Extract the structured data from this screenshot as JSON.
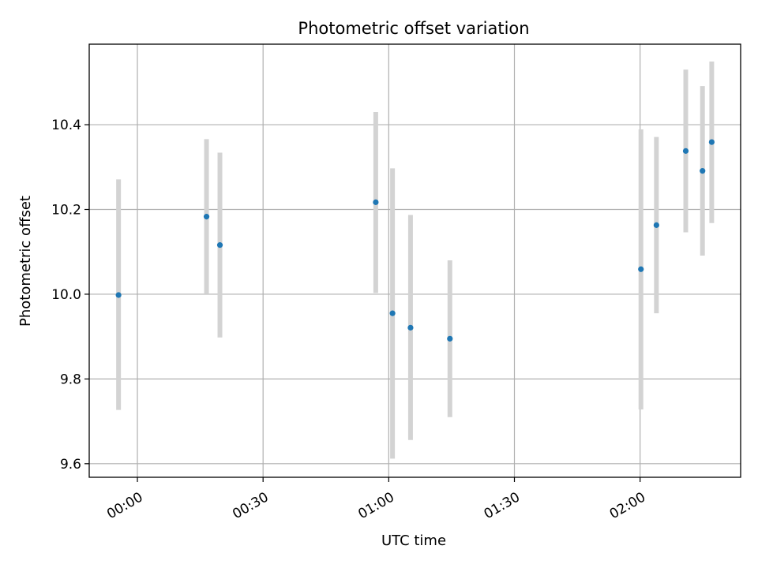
{
  "chart_data": {
    "type": "scatter",
    "title": "Photometric offset variation",
    "xlabel": "UTC time",
    "ylabel": "Photometric offset",
    "x_unit": "minutes",
    "xlim": [
      -11.5,
      144
    ],
    "ylim": [
      9.568,
      10.59
    ],
    "x_ticks": [
      {
        "value": 0,
        "label": "00:00"
      },
      {
        "value": 30,
        "label": "00:30"
      },
      {
        "value": 60,
        "label": "01:00"
      },
      {
        "value": 90,
        "label": "01:30"
      },
      {
        "value": 120,
        "label": "02:00"
      }
    ],
    "y_ticks": [
      {
        "value": 9.6,
        "label": "9.6"
      },
      {
        "value": 9.8,
        "label": "9.8"
      },
      {
        "value": 10.0,
        "label": "10.0"
      },
      {
        "value": 10.2,
        "label": "10.2"
      },
      {
        "value": 10.4,
        "label": "10.4"
      }
    ],
    "grid": true,
    "point_color": "#1f77b4",
    "errorbar_color": "#d3d3d3",
    "points": [
      {
        "time": "23:55",
        "x": -4.5,
        "y": 9.998,
        "ylow": 9.727,
        "yhigh": 10.271
      },
      {
        "time": "00:17",
        "x": 16.5,
        "y": 10.183,
        "ylow": 10.0,
        "yhigh": 10.366
      },
      {
        "time": "00:20",
        "x": 19.7,
        "y": 10.116,
        "ylow": 9.898,
        "yhigh": 10.334
      },
      {
        "time": "00:57",
        "x": 56.9,
        "y": 10.217,
        "ylow": 10.003,
        "yhigh": 10.43
      },
      {
        "time": "01:01",
        "x": 60.9,
        "y": 9.955,
        "ylow": 9.612,
        "yhigh": 10.297
      },
      {
        "time": "01:05",
        "x": 65.2,
        "y": 9.921,
        "ylow": 9.656,
        "yhigh": 10.187
      },
      {
        "time": "01:15",
        "x": 74.6,
        "y": 9.895,
        "ylow": 9.71,
        "yhigh": 10.08
      },
      {
        "time": "02:00",
        "x": 120.2,
        "y": 10.059,
        "ylow": 9.728,
        "yhigh": 10.389
      },
      {
        "time": "02:04",
        "x": 123.9,
        "y": 10.163,
        "ylow": 9.955,
        "yhigh": 10.371
      },
      {
        "time": "02:11",
        "x": 130.9,
        "y": 10.338,
        "ylow": 10.146,
        "yhigh": 10.53
      },
      {
        "time": "02:15",
        "x": 134.9,
        "y": 10.291,
        "ylow": 10.091,
        "yhigh": 10.491
      },
      {
        "time": "02:17",
        "x": 137.1,
        "y": 10.359,
        "ylow": 10.168,
        "yhigh": 10.549
      }
    ]
  }
}
